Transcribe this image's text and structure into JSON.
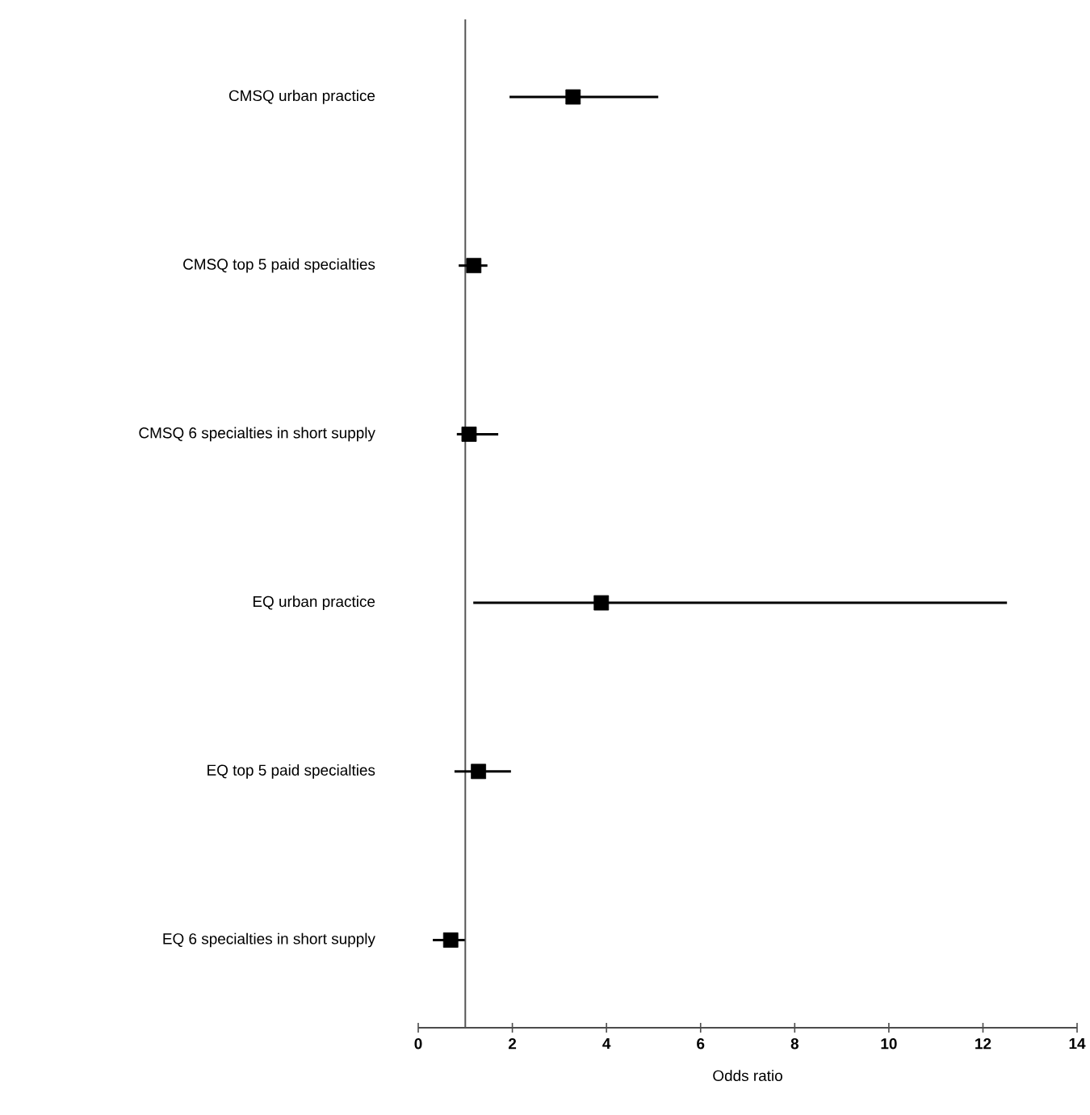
{
  "chart_data": {
    "type": "scatter",
    "orientation": "horizontal",
    "xlabel": "Odds ratio",
    "color": "#000000",
    "marker": "square",
    "categories": [
      "CMSQ urban practice",
      "CMSQ top 5 paid specialties",
      "CMSQ 6 specialties in short supply",
      "EQ urban practice",
      "EQ top 5 paid specialties",
      "EQ 6 specialties in short supply"
    ],
    "values": [
      3.29,
      1.18,
      1.08,
      3.89,
      1.28,
      0.69
    ],
    "errors": [
      [
        1.94,
        5.1
      ],
      [
        0.86,
        1.47
      ],
      [
        0.82,
        1.7
      ],
      [
        1.17,
        12.51
      ],
      [
        0.77,
        1.97
      ],
      [
        0.31,
        0.99
      ]
    ],
    "xlim": [
      0,
      14
    ],
    "xticks": [
      0,
      2,
      4,
      6,
      8,
      10,
      12,
      14
    ],
    "ref_lines": [
      {
        "axis": "x",
        "value": 1,
        "color": "#555555"
      }
    ]
  }
}
